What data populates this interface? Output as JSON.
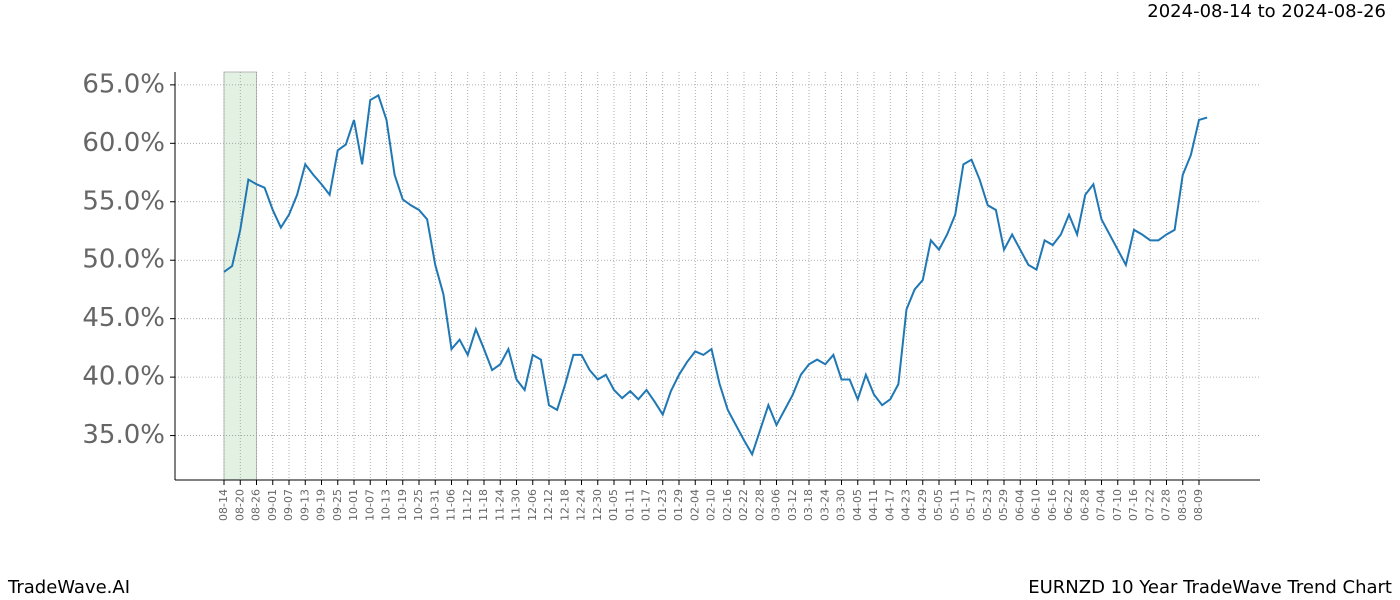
{
  "chart_data": {
    "type": "line",
    "title": "EURNZD 10 Year TradeWave Trend Chart",
    "subtitle": "2024-08-14 to 2024-08-26",
    "source": "TradeWave.AI",
    "categories": [
      "08-14",
      null,
      "08-20",
      null,
      "08-26",
      null,
      "09-01",
      null,
      "09-07",
      null,
      "09-13",
      null,
      "09-19",
      null,
      "09-25",
      null,
      "10-01",
      null,
      "10-07",
      null,
      "10-13",
      null,
      "10-19",
      null,
      "10-25",
      null,
      "10-31",
      null,
      "11-06",
      null,
      "11-12",
      null,
      "11-18",
      null,
      "11-24",
      null,
      "11-30",
      null,
      "12-06",
      null,
      "12-12",
      null,
      "12-18",
      null,
      "12-24",
      null,
      "12-30",
      null,
      "01-05",
      null,
      "01-11",
      null,
      "01-17",
      null,
      "01-23",
      null,
      "01-29",
      null,
      "02-04",
      null,
      "02-10",
      null,
      "02-16",
      null,
      "02-22",
      null,
      "02-28",
      null,
      "03-06",
      null,
      "03-12",
      null,
      "03-18",
      null,
      "03-24",
      null,
      "03-30",
      null,
      "04-05",
      null,
      "04-11",
      null,
      "04-17",
      null,
      "04-23",
      null,
      "04-29",
      null,
      "05-05",
      null,
      "05-11",
      null,
      "05-17",
      null,
      "05-23",
      null,
      "05-29",
      null,
      "06-04",
      null,
      "06-10",
      null,
      "06-16",
      null,
      "06-22",
      null,
      "06-28",
      null,
      "07-04",
      null,
      "07-10",
      null,
      "07-16",
      null,
      "07-22",
      null,
      "07-28",
      null,
      "08-03",
      null,
      "08-09",
      null
    ],
    "series": [
      {
        "color": "#1f77b4",
        "values": [
          49.0,
          49.5,
          52.6,
          56.9,
          56.5,
          56.2,
          54.3,
          52.8,
          53.9,
          55.6,
          58.2,
          57.3,
          56.5,
          55.6,
          59.4,
          59.9,
          62.0,
          58.2,
          63.7,
          64.1,
          62.0,
          57.3,
          55.2,
          54.7,
          54.3,
          53.5,
          49.6,
          47.1,
          42.4,
          43.2,
          41.9,
          44.1,
          42.4,
          40.6,
          41.1,
          42.4,
          39.8,
          38.9,
          41.9,
          41.5,
          37.6,
          37.2,
          39.4,
          41.9,
          41.9,
          40.6,
          39.8,
          40.2,
          38.9,
          38.2,
          38.8,
          38.1,
          38.9,
          37.9,
          36.8,
          38.8,
          40.2,
          41.3,
          42.2,
          41.9,
          42.4,
          39.4,
          37.2,
          35.9,
          34.6,
          33.4,
          35.5,
          37.6,
          35.9,
          37.2,
          38.5,
          40.2,
          41.1,
          41.5,
          41.1,
          41.9,
          39.8,
          39.8,
          38.1,
          40.2,
          38.5,
          37.6,
          38.1,
          39.4,
          45.8,
          47.5,
          48.3,
          51.7,
          50.9,
          52.2,
          53.9,
          58.2,
          58.6,
          56.9,
          54.7,
          54.3,
          50.9,
          52.2,
          50.9,
          49.6,
          49.2,
          51.7,
          51.3,
          52.2,
          53.9,
          52.2,
          55.6,
          56.5,
          53.5,
          52.2,
          50.9,
          49.6,
          52.6,
          52.2,
          51.7,
          51.7,
          52.2,
          52.6,
          57.3,
          59.0,
          62.0,
          62.2
        ]
      }
    ],
    "ylim": [
      31.2,
      66.1
    ],
    "yticks": [
      {
        "value": 35,
        "label": "35.0%"
      },
      {
        "value": 40,
        "label": "40.0%"
      },
      {
        "value": 45,
        "label": "45.0%"
      },
      {
        "value": 50,
        "label": "50.0%"
      },
      {
        "value": 55,
        "label": "55.0%"
      },
      {
        "value": 60,
        "label": "60.0%"
      },
      {
        "value": 65,
        "label": "65.0%"
      }
    ],
    "grid": true,
    "highlight": {
      "from": 0,
      "to": 4,
      "color": "#e3f1e3"
    }
  }
}
